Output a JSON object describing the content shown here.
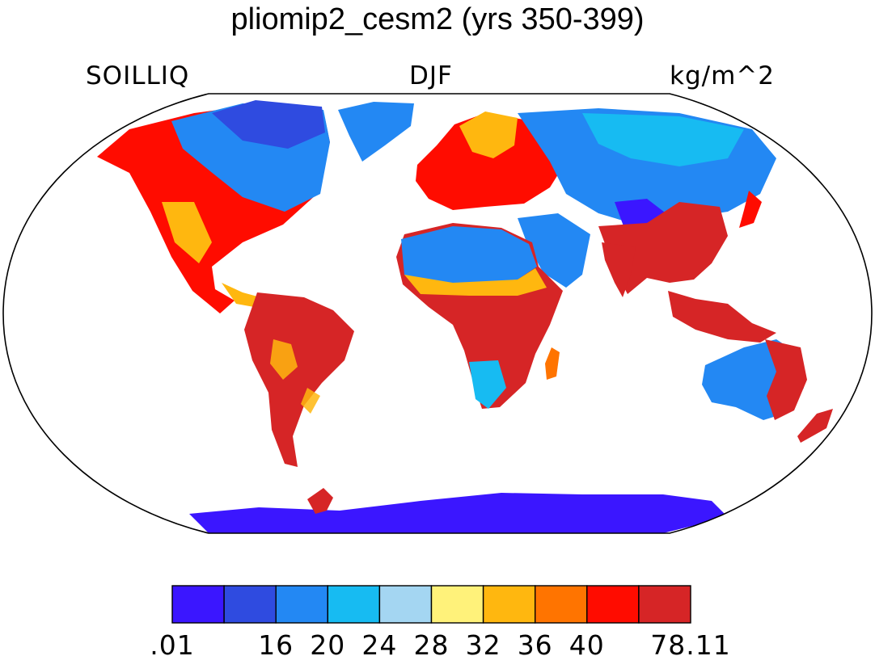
{
  "title": "pliomip2_cesm2 (yrs 350-399)",
  "variable": "SOILLIQ",
  "season": "DJF",
  "units": "kg/m^2",
  "colorbar": {
    "colors": [
      "#3b16ff",
      "#2f4be0",
      "#2388f3",
      "#17bbf2",
      "#a4d6f2",
      "#fff27a",
      "#ffb70f",
      "#ff7400",
      "#ff0c00",
      "#d62526"
    ],
    "labels": [
      ".01",
      "",
      "16",
      "20",
      "24",
      "28",
      "32",
      "36",
      "40",
      "",
      "78.11"
    ]
  }
}
